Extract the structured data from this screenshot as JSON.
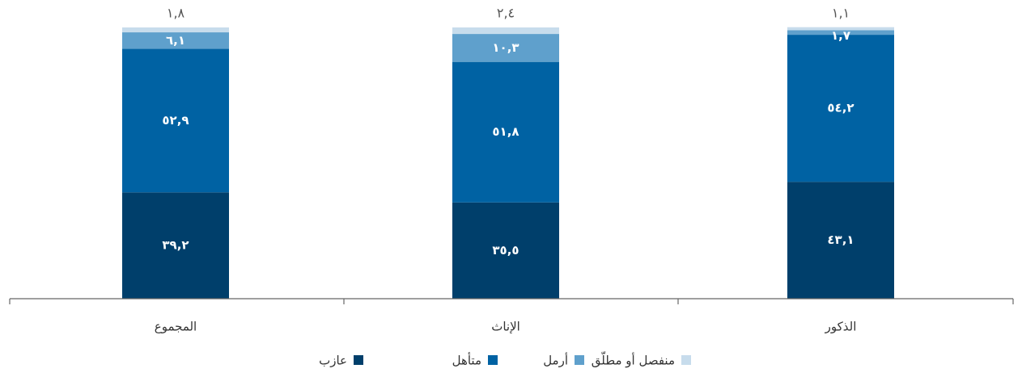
{
  "chart_data": {
    "type": "bar",
    "stacked": true,
    "categories": [
      "المجموع",
      "الإناث",
      "الذكور"
    ],
    "series": [
      {
        "name": "عازب",
        "color": "#003f6b",
        "values": [
          39.2,
          35.5,
          43.1
        ],
        "value_labels": [
          "٣٩,٢",
          "٣٥,٥",
          "٤٣,١"
        ]
      },
      {
        "name": "متأهل",
        "color": "#0062a3",
        "values": [
          52.9,
          51.8,
          54.2
        ],
        "value_labels": [
          "٥٢,٩",
          "٥١,٨",
          "٥٤,٢"
        ]
      },
      {
        "name": "أرمل",
        "color": "#5fa0cc",
        "values": [
          6.1,
          10.3,
          1.7
        ],
        "value_labels": [
          "٦,١",
          "١٠,٣",
          "١,٧"
        ]
      },
      {
        "name": "منفصل أو مطلّق",
        "color": "#c7dcec",
        "values": [
          1.8,
          2.4,
          1.1
        ],
        "value_labels": [
          "١,٨",
          "٢,٤",
          "١,١"
        ]
      }
    ],
    "ylim": [
      0,
      100
    ]
  }
}
